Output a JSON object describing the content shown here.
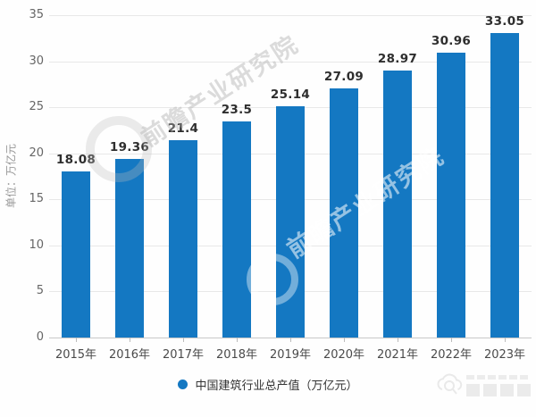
{
  "chart_data": {
    "type": "bar",
    "categories": [
      "2015年",
      "2016年",
      "2017年",
      "2018年",
      "2019年",
      "2020年",
      "2021年",
      "2022年",
      "2023年"
    ],
    "values": [
      18.08,
      19.36,
      21.4,
      23.5,
      25.14,
      27.09,
      28.97,
      30.96,
      33.05
    ],
    "title": "",
    "xlabel": "",
    "ylabel": "单位：万亿元",
    "ylim": [
      0,
      35
    ],
    "yticks": [
      0,
      5,
      10,
      15,
      20,
      25,
      30,
      35
    ],
    "grid": true,
    "legend": "中国建筑行业总产值（万亿元）",
    "legend_position": "bottom",
    "bar_color": "#1478c2"
  },
  "watermark": {
    "text": "前瞻产业研究院"
  },
  "colors": {
    "bar": "#1478c2",
    "grid": "#e8e8e8",
    "axis_line": "#c8c8c8",
    "tick_label": "#666666",
    "x_label": "#4a4a4a",
    "value_label": "#2e2e2e",
    "legend_text": "#333333",
    "y_title": "#979797",
    "watermark_gray": "#acacac"
  }
}
